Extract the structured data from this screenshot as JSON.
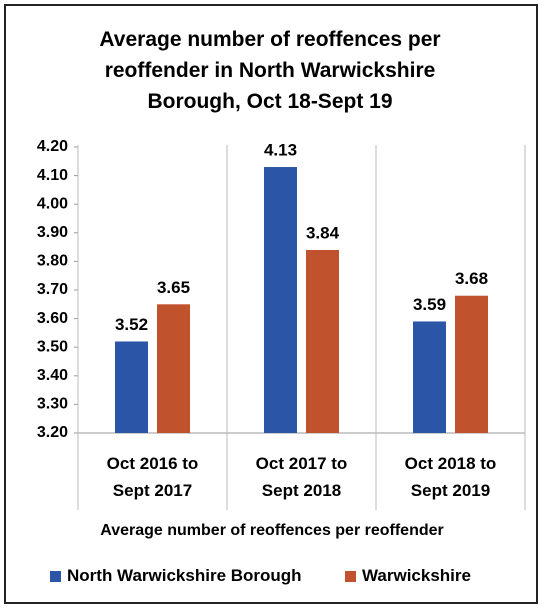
{
  "chart_data": {
    "type": "bar",
    "title": "Average number of reoffences per reoffender in North Warwickshire Borough, Oct 18-Sept 19",
    "x_label": "Average number of reoffences per reoffender",
    "categories": [
      "Oct 2016 to Sept 2017",
      "Oct 2017 to Sept 2018",
      "Oct 2018 to Sept 2019"
    ],
    "series": [
      {
        "name": "North Warwickshire Borough",
        "color": "#2b55a6",
        "values": [
          3.52,
          4.13,
          3.59
        ]
      },
      {
        "name": "Warwickshire",
        "color": "#c0532e",
        "values": [
          3.65,
          3.84,
          3.68
        ]
      }
    ],
    "ylim": [
      3.2,
      4.2
    ],
    "yticks": [
      {
        "value": 3.2,
        "label": "3.20"
      },
      {
        "value": 3.3,
        "label": "3.30"
      },
      {
        "value": 3.4,
        "label": "3.40"
      },
      {
        "value": 3.5,
        "label": "3.50"
      },
      {
        "value": 3.6,
        "label": "3.60"
      },
      {
        "value": 3.7,
        "label": "3.70"
      },
      {
        "value": 3.8,
        "label": "3.80"
      },
      {
        "value": 3.9,
        "label": "3.90"
      },
      {
        "value": 4.0,
        "label": "4.00"
      },
      {
        "value": 4.1,
        "label": "4.10"
      },
      {
        "value": 4.2,
        "label": "4.20"
      }
    ],
    "legend": "bottom"
  }
}
